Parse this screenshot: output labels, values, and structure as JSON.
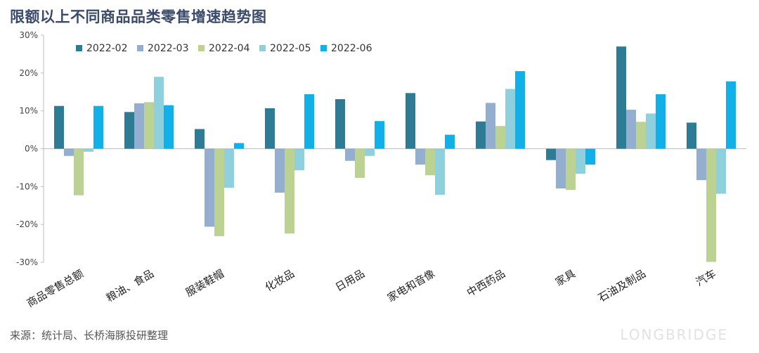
{
  "title": "限额以上不同商品品类零售增速趋势图",
  "source": "来源：统计局、长桥海豚投研整理",
  "brand": "LONGBRIDGE",
  "colors": {
    "2022-02": "#2e7b96",
    "2022-03": "#94aed0",
    "2022-04": "#bcd293",
    "2022-05": "#8fd0de",
    "2022-06": "#12b0e8"
  },
  "chart_data": {
    "type": "bar",
    "title": "限额以上不同商品品类零售增速趋势图",
    "xlabel": "",
    "ylabel": "",
    "ylim": [
      -30,
      30
    ],
    "yticks": [
      30,
      20,
      10,
      0,
      -10,
      -20,
      -30
    ],
    "ytick_labels": [
      "30%",
      "20%",
      "10%",
      "0%",
      "-10%",
      "-20%",
      "-30%"
    ],
    "grid": false,
    "legend": "top-left",
    "categories": [
      "商品零售总额",
      "粮油、食品",
      "服装鞋帽",
      "化妆品",
      "日用品",
      "家电和音像",
      "中西药品",
      "家具",
      "石油及制品",
      "汽车"
    ],
    "series": [
      {
        "name": "2022-02",
        "values": [
          11.3,
          9.7,
          5.2,
          10.7,
          13.1,
          14.7,
          7.2,
          -3.0,
          27.0,
          6.9
        ]
      },
      {
        "name": "2022-03",
        "values": [
          -1.9,
          12.0,
          -20.6,
          -11.6,
          -3.2,
          -4.2,
          12.1,
          -10.5,
          10.3,
          -8.3
        ]
      },
      {
        "name": "2022-04",
        "values": [
          -12.3,
          12.3,
          -23.1,
          -22.4,
          -7.7,
          -7.0,
          6.0,
          -10.9,
          7.1,
          -29.9
        ]
      },
      {
        "name": "2022-05",
        "values": [
          -0.8,
          19.0,
          -10.3,
          -5.7,
          -1.9,
          -12.2,
          15.8,
          -6.6,
          9.3,
          -11.9
        ]
      },
      {
        "name": "2022-06",
        "values": [
          11.3,
          11.5,
          1.5,
          14.4,
          7.3,
          3.7,
          20.5,
          -4.2,
          14.4,
          17.8
        ]
      }
    ]
  }
}
